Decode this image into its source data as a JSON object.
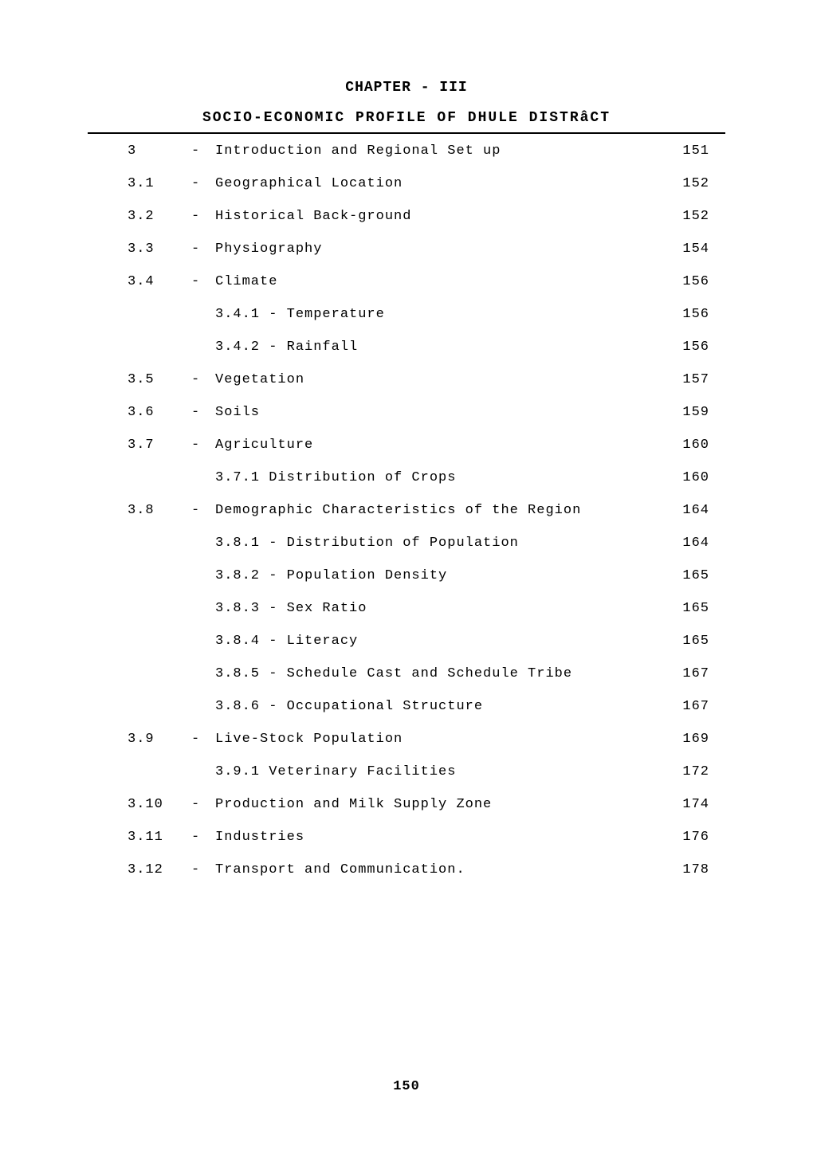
{
  "chapter_title": "CHAPTER - III",
  "subtitle": "SOCIO-ECONOMIC PROFILE OF DHULE DISTRâCT",
  "page_number": "150",
  "styling": {
    "background_color": "#ffffff",
    "text_color": "#000000",
    "font_family": "Courier New",
    "base_fontsize": 17,
    "title_fontsize": 18,
    "divider_color": "#000000",
    "divider_width": 2,
    "row_spacing": 22,
    "letter_spacing": 1
  },
  "toc": [
    {
      "number": "3",
      "sep": "-",
      "desc": "Introduction and Regional Set up",
      "page": "151",
      "indent": false
    },
    {
      "number": "3.1",
      "sep": "-",
      "desc": "Geographical Location",
      "page": "152",
      "indent": false
    },
    {
      "number": "3.2",
      "sep": "-",
      "desc": "Historical Back-ground",
      "page": "152",
      "indent": false
    },
    {
      "number": "3.3",
      "sep": "-",
      "desc": "Physiography",
      "page": "154",
      "indent": false
    },
    {
      "number": "3.4",
      "sep": "-",
      "desc": "Climate",
      "page": "156",
      "indent": false
    },
    {
      "number": "",
      "sep": "",
      "desc": "3.4.1 - Temperature",
      "page": "156",
      "indent": true
    },
    {
      "number": "",
      "sep": "",
      "desc": "3.4.2 - Rainfall",
      "page": "156",
      "indent": true
    },
    {
      "number": "3.5",
      "sep": "-",
      "desc": "Vegetation",
      "page": "157",
      "indent": false
    },
    {
      "number": "3.6",
      "sep": "-",
      "desc": "Soils",
      "page": "159",
      "indent": false
    },
    {
      "number": "3.7",
      "sep": "-",
      "desc": "Agriculture",
      "page": "160",
      "indent": false
    },
    {
      "number": "",
      "sep": "",
      "desc": "3.7.1 Distribution of Crops",
      "page": "160",
      "indent": true
    },
    {
      "number": "3.8",
      "sep": "-",
      "desc": "Demographic Characteristics of the Region",
      "page": "164",
      "indent": false
    },
    {
      "number": "",
      "sep": "",
      "desc": "3.8.1 - Distribution of Population",
      "page": "164",
      "indent": true
    },
    {
      "number": "",
      "sep": "",
      "desc": "3.8.2 - Population Density",
      "page": "165",
      "indent": true
    },
    {
      "number": "",
      "sep": "",
      "desc": "3.8.3 - Sex Ratio",
      "page": "165",
      "indent": true
    },
    {
      "number": "",
      "sep": "",
      "desc": "3.8.4 - Literacy",
      "page": "165",
      "indent": true
    },
    {
      "number": "",
      "sep": "",
      "desc": "3.8.5 - Schedule Cast and Schedule Tribe",
      "page": "167",
      "indent": true
    },
    {
      "number": "",
      "sep": "",
      "desc": "3.8.6 - Occupational Structure",
      "page": "167",
      "indent": true
    },
    {
      "number": "3.9",
      "sep": "-",
      "desc": "Live-Stock Population",
      "page": "169",
      "indent": false
    },
    {
      "number": "",
      "sep": "",
      "desc": "3.9.1 Veterinary Facilities",
      "page": "172",
      "indent": true
    },
    {
      "number": "3.10",
      "sep": "-",
      "desc": "Production and Milk Supply Zone",
      "page": "174",
      "indent": false
    },
    {
      "number": "3.11",
      "sep": "-",
      "desc": "Industries",
      "page": "176",
      "indent": false
    },
    {
      "number": "3.12",
      "sep": "-",
      "desc": "Transport and Communication.",
      "page": "178",
      "indent": false
    }
  ]
}
